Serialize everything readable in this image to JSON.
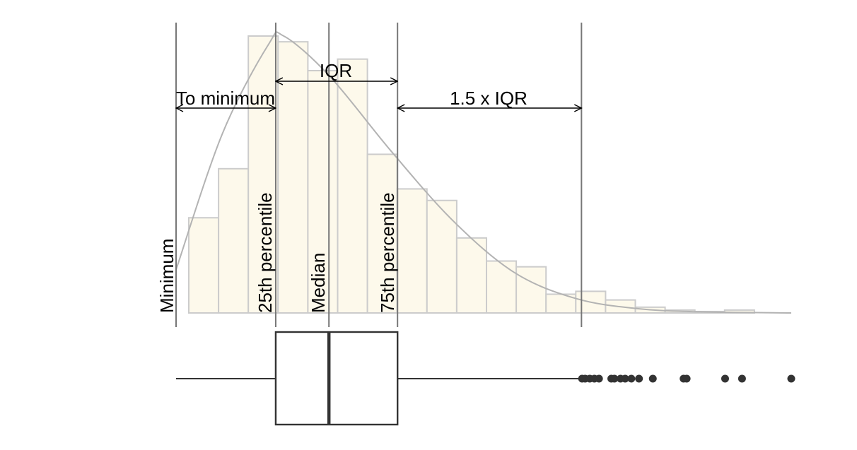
{
  "labels": {
    "minimum": "Minimum",
    "p25": "25th percentile",
    "median": "Median",
    "p75": "75th percentile",
    "to_minimum": "To minimum",
    "iqr": "IQR",
    "iqr_1_5": "1.5 x IQR"
  },
  "colors": {
    "bar_fill": "#fdf9eb",
    "bar_stroke": "#cccccc",
    "density_curve": "#b3b3b3",
    "ref_line": "#777777",
    "box": "#333333",
    "outlier": "#333333"
  },
  "chart_data": {
    "type": "histogram+boxplot",
    "histogram_counts": [
      0.33,
      0.5,
      0.96,
      0.94,
      0.84,
      0.88,
      0.55,
      0.43,
      0.39,
      0.26,
      0.18,
      0.16,
      0.065,
      0.075,
      0.045,
      0.02,
      0.01,
      0.005,
      0.01,
      0.0
    ],
    "density_curve": [
      [
        0.0,
        0.15
      ],
      [
        1.5,
        0.62
      ],
      [
        3.0,
        0.93
      ],
      [
        3.5,
        0.96
      ],
      [
        5.0,
        0.82
      ],
      [
        7.0,
        0.56
      ],
      [
        9.0,
        0.32
      ],
      [
        11.0,
        0.14
      ],
      [
        13.0,
        0.05
      ],
      [
        15.0,
        0.015
      ],
      [
        17.0,
        0.004
      ],
      [
        20.0,
        0.0
      ]
    ],
    "boxplot": {
      "whisker_low": 0.0,
      "q1": 3.24,
      "median": 4.97,
      "q3": 7.2,
      "whisker_high": 13.18
    },
    "outliers": [
      13.2,
      13.3,
      13.45,
      13.6,
      13.75,
      14.15,
      14.25,
      14.45,
      14.6,
      14.8,
      15.05,
      15.5,
      16.5,
      16.6,
      17.85,
      18.4,
      20.0
    ]
  }
}
